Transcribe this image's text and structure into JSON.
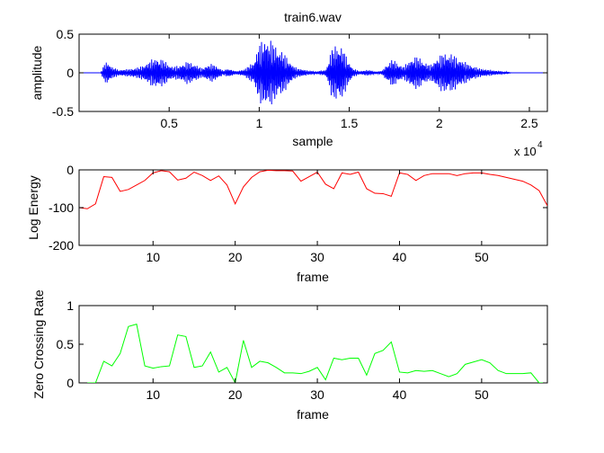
{
  "figure": {
    "background": "#ffffff"
  },
  "chart_data": [
    {
      "id": "waveform",
      "type": "line",
      "title": "train6.wav",
      "xlabel": "sample",
      "ylabel": "amplitude",
      "xlim": [
        0,
        26000
      ],
      "ylim": [
        -0.5,
        0.5
      ],
      "xticks": [
        5000,
        10000,
        15000,
        20000,
        25000
      ],
      "xtick_labels": [
        "0.5",
        "1",
        "1.5",
        "2",
        "2.5"
      ],
      "x_exponent_label": {
        "base": "x 10",
        "exponent": "4"
      },
      "yticks": [
        -0.5,
        0,
        0.5
      ],
      "ytick_labels": [
        "-0.5",
        "0",
        "0.5"
      ],
      "grid": false,
      "color": "#0000ff",
      "envelope": {
        "description_x": "sample",
        "x": [
          0,
          1200,
          1400,
          1600,
          1800,
          2200,
          2800,
          3400,
          3700,
          4000,
          4300,
          4600,
          4900,
          5200,
          5600,
          6000,
          6400,
          6800,
          7100,
          7400,
          7700,
          8000,
          8300,
          8700,
          9200,
          9700,
          10000,
          10300,
          10600,
          10900,
          11200,
          11500,
          11800,
          12100,
          12400,
          12700,
          13200,
          13700,
          14000,
          14300,
          14600,
          14900,
          15200,
          15600,
          16000,
          16400,
          16800,
          17100,
          17400,
          17700,
          18000,
          18300,
          18600,
          18900,
          19200,
          19500,
          19800,
          20100,
          20400,
          20700,
          21000,
          21300,
          21600,
          21900,
          22200,
          22500,
          22800,
          23100,
          23500,
          24000,
          26000
        ],
        "y": [
          0.0,
          0.0,
          0.12,
          0.16,
          0.08,
          0.04,
          0.05,
          0.08,
          0.12,
          0.17,
          0.2,
          0.18,
          0.13,
          0.08,
          0.1,
          0.15,
          0.12,
          0.06,
          0.1,
          0.12,
          0.08,
          0.03,
          0.06,
          0.02,
          0.05,
          0.15,
          0.38,
          0.45,
          0.44,
          0.36,
          0.3,
          0.22,
          0.12,
          0.06,
          0.05,
          0.03,
          0.02,
          0.04,
          0.3,
          0.38,
          0.35,
          0.18,
          0.06,
          0.02,
          0.04,
          0.02,
          0.02,
          0.12,
          0.18,
          0.13,
          0.08,
          0.15,
          0.22,
          0.2,
          0.14,
          0.1,
          0.18,
          0.24,
          0.27,
          0.25,
          0.2,
          0.16,
          0.12,
          0.09,
          0.06,
          0.05,
          0.04,
          0.03,
          0.02,
          0.0,
          0.0
        ]
      }
    },
    {
      "id": "log-energy",
      "type": "line",
      "title": "",
      "xlabel": "frame",
      "ylabel": "Log Energy",
      "xlim": [
        1,
        58
      ],
      "ylim": [
        -200,
        0
      ],
      "xticks": [
        10,
        20,
        30,
        40,
        50
      ],
      "xtick_labels": [
        "10",
        "20",
        "30",
        "40",
        "50"
      ],
      "yticks": [
        -200,
        -100,
        0
      ],
      "ytick_labels": [
        "-200",
        "-100",
        "0"
      ],
      "grid": false,
      "color": "#ff0000",
      "x": [
        1,
        2,
        3,
        4,
        5,
        6,
        7,
        8,
        9,
        10,
        11,
        12,
        13,
        14,
        15,
        16,
        17,
        18,
        19,
        20,
        21,
        22,
        23,
        24,
        25,
        26,
        27,
        28,
        29,
        30,
        31,
        32,
        33,
        34,
        35,
        36,
        37,
        38,
        39,
        40,
        41,
        42,
        43,
        44,
        45,
        46,
        47,
        48,
        49,
        50,
        51,
        52,
        53,
        54,
        55,
        56,
        57,
        58
      ],
      "y": [
        -100,
        -103,
        -90,
        -18,
        -20,
        -57,
        -52,
        -40,
        -28,
        -8,
        -2,
        -5,
        -27,
        -22,
        -6,
        -15,
        -28,
        -16,
        -40,
        -90,
        -45,
        -20,
        -5,
        -1,
        -2,
        -2,
        -3,
        -30,
        -18,
        -6,
        -38,
        -50,
        -8,
        -12,
        -6,
        -50,
        -62,
        -63,
        -70,
        -8,
        -12,
        -28,
        -15,
        -10,
        -10,
        -10,
        -15,
        -10,
        -8,
        -8,
        -12,
        -15,
        -20,
        -25,
        -30,
        -40,
        -55,
        -95
      ]
    },
    {
      "id": "zero-crossing-rate",
      "type": "line",
      "title": "",
      "xlabel": "frame",
      "ylabel": "Zero Crossing Rate",
      "xlim": [
        1,
        58
      ],
      "ylim": [
        0,
        1
      ],
      "xticks": [
        10,
        20,
        30,
        40,
        50
      ],
      "xtick_labels": [
        "10",
        "20",
        "30",
        "40",
        "50"
      ],
      "yticks": [
        0,
        0.5,
        1
      ],
      "ytick_labels": [
        "0",
        "0.5",
        "1"
      ],
      "grid": false,
      "color": "#00ff00",
      "x": [
        2,
        3,
        4,
        5,
        6,
        7,
        8,
        9,
        10,
        11,
        12,
        13,
        14,
        15,
        16,
        17,
        18,
        19,
        20,
        21,
        22,
        23,
        24,
        25,
        26,
        27,
        28,
        29,
        30,
        31,
        32,
        33,
        34,
        35,
        36,
        37,
        38,
        39,
        40,
        41,
        42,
        43,
        44,
        45,
        46,
        47,
        48,
        49,
        50,
        51,
        52,
        53,
        54,
        55,
        56,
        57,
        58
      ],
      "y": [
        0.0,
        0.0,
        0.28,
        0.22,
        0.38,
        0.73,
        0.76,
        0.22,
        0.19,
        0.21,
        0.22,
        0.62,
        0.6,
        0.2,
        0.22,
        0.4,
        0.14,
        0.2,
        0.0,
        0.55,
        0.2,
        0.28,
        0.26,
        0.2,
        0.13,
        0.13,
        0.12,
        0.15,
        0.2,
        0.04,
        0.32,
        0.3,
        0.32,
        0.32,
        0.1,
        0.38,
        0.42,
        0.53,
        0.14,
        0.13,
        0.16,
        0.15,
        0.16,
        0.12,
        0.08,
        0.12,
        0.24,
        0.27,
        0.3,
        0.26,
        0.16,
        0.12,
        0.12,
        0.12,
        0.13,
        0.0,
        0.0
      ]
    }
  ]
}
